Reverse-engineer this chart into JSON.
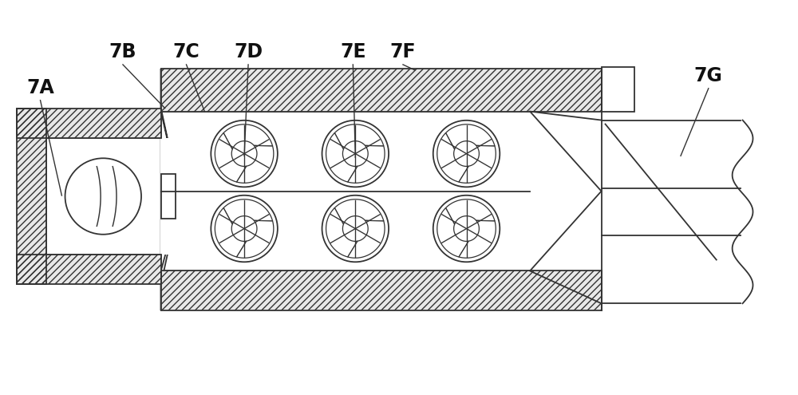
{
  "bg_color": "#ffffff",
  "line_color": "#333333",
  "lw": 1.3,
  "labels": [
    "7A",
    "7B",
    "7C",
    "7D",
    "7E",
    "7F",
    "7G"
  ],
  "label_fontsize": 17,
  "hatch_density": "////"
}
